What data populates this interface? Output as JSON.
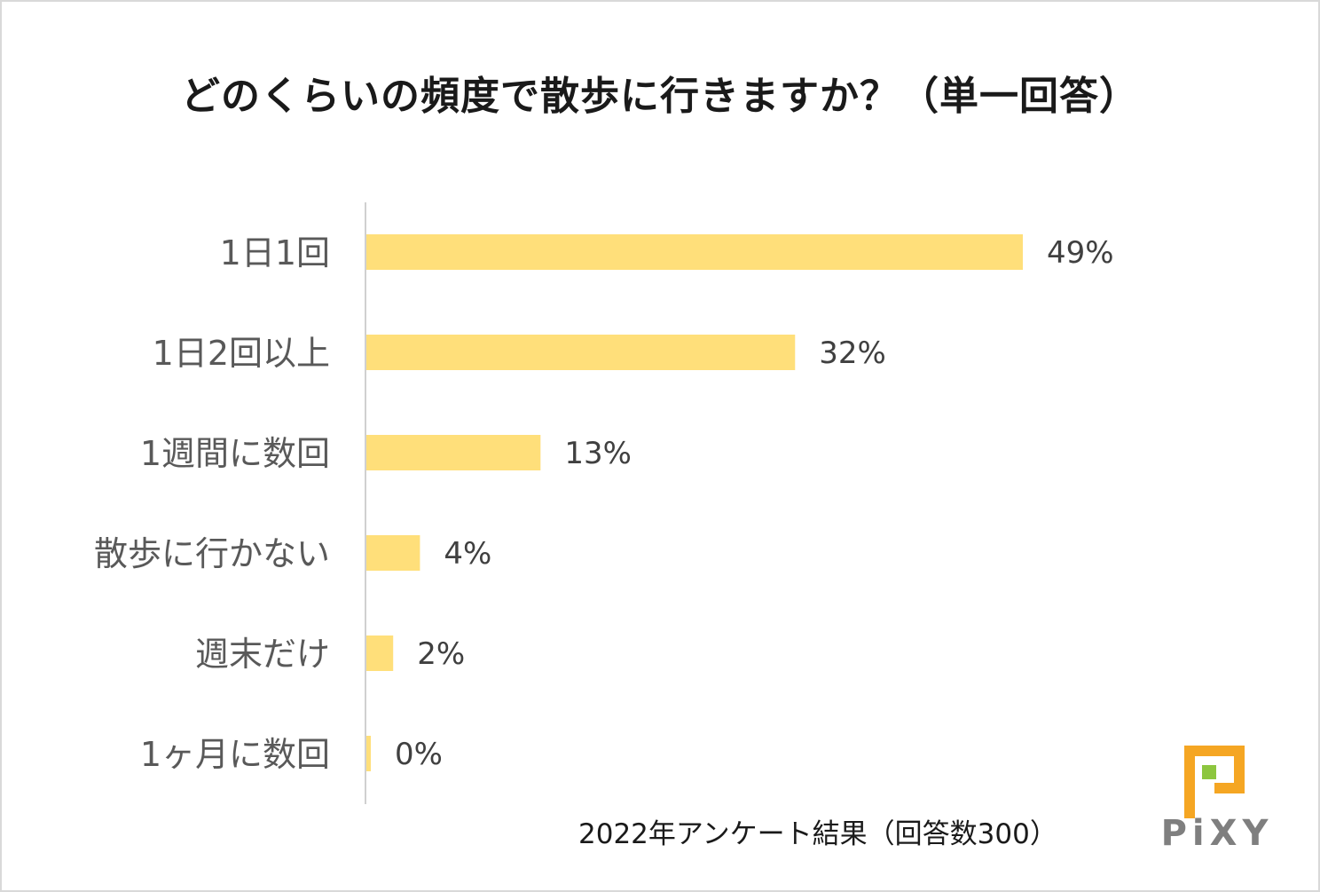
{
  "chart_data": {
    "type": "bar",
    "orientation": "horizontal",
    "title": "どのくらいの頻度で散歩に行きますか？（単一回答）",
    "categories": [
      "1日1回",
      "1日2回以上",
      "1週間に数回",
      "散歩に行かない",
      "週末だけ",
      "1ヶ月に数回"
    ],
    "values": [
      49,
      32,
      13,
      4,
      2,
      0
    ],
    "value_labels": [
      "49%",
      "32%",
      "13%",
      "4%",
      "2%",
      "0%"
    ],
    "xlim": [
      0,
      60
    ],
    "bar_color": "#FFDF7A",
    "axis_color": "#d0d0d0",
    "grid": false
  },
  "footnote": "2022年アンケート結果（回答数300）",
  "logo": {
    "text": "PiXY",
    "primary_color": "#F5A623",
    "accent_color": "#8DC63F"
  }
}
